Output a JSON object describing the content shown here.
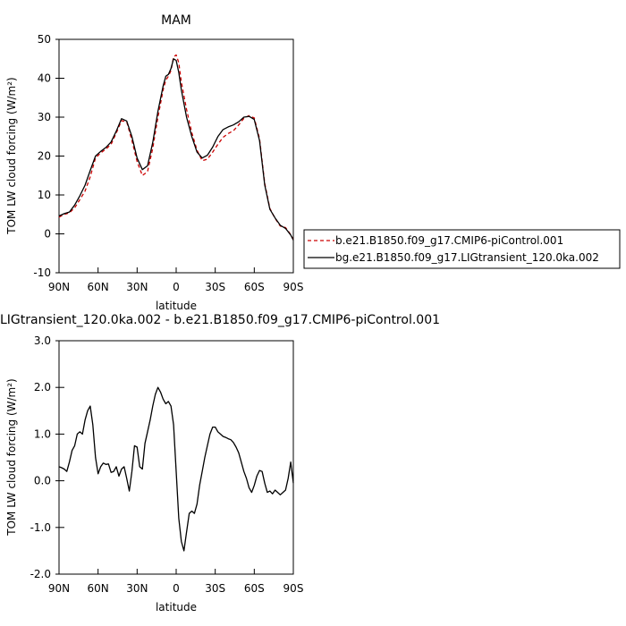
{
  "chart_data": [
    {
      "type": "line",
      "title": "MAM",
      "xlabel": "latitude",
      "ylabel": "TOM LW cloud forcing (W/m²)",
      "xlim": [
        90,
        -90
      ],
      "ylim": [
        -10,
        50
      ],
      "x_ticks": [
        90,
        60,
        30,
        0,
        -30,
        -60,
        -90
      ],
      "x_tick_labels": [
        "90N",
        "60N",
        "30N",
        "0",
        "30S",
        "60S",
        "90S"
      ],
      "y_ticks": [
        -10,
        0,
        10,
        20,
        30,
        40,
        50
      ],
      "y_tick_labels": [
        "-10",
        "0",
        "10",
        "20",
        "30",
        "40",
        "50"
      ],
      "legend": {
        "placement": "outside-right",
        "entries": [
          "b.e21.B1850.f09_g17.CMIP6-piControl.001",
          "bg.e21.B1850.f09_g17.LIGtransient_120.0ka.002"
        ]
      },
      "series": [
        {
          "name": "b.e21.B1850.f09_g17.CMIP6-piControl.001",
          "color": "#cc0000",
          "dash": "dashed",
          "x": [
            90,
            86,
            82,
            78,
            74,
            70,
            66,
            62,
            58,
            54,
            50,
            46,
            42,
            38,
            34,
            30,
            26,
            22,
            18,
            14,
            10,
            8,
            6,
            4,
            2,
            0,
            -2,
            -4,
            -8,
            -12,
            -16,
            -20,
            -24,
            -28,
            -32,
            -36,
            -40,
            -44,
            -48,
            -52,
            -56,
            -60,
            -64,
            -68,
            -72,
            -76,
            -80,
            -84,
            -88,
            -90
          ],
          "y": [
            4.3,
            5.0,
            5.4,
            6.7,
            8.8,
            11.0,
            14.7,
            19.5,
            20.8,
            21.8,
            23.0,
            25.9,
            29.1,
            28.8,
            24.0,
            18.6,
            15.0,
            16.0,
            22.0,
            30.0,
            37.0,
            39.5,
            40.5,
            42.0,
            45.5,
            46.0,
            44.0,
            39.0,
            32.0,
            26.0,
            21.5,
            18.8,
            19.2,
            21.0,
            23.0,
            24.8,
            25.8,
            26.5,
            28.0,
            29.7,
            30.4,
            29.8,
            24.5,
            13.0,
            6.5,
            4.0,
            2.0,
            1.6,
            -0.2,
            -1.5
          ]
        },
        {
          "name": "bg.e21.B1850.f09_g17.LIGtransient_120.0ka.002",
          "color": "#000000",
          "dash": "solid",
          "x": [
            90,
            86,
            82,
            78,
            74,
            70,
            66,
            62,
            58,
            54,
            50,
            46,
            42,
            38,
            34,
            30,
            26,
            22,
            18,
            14,
            10,
            8,
            6,
            4,
            2,
            0,
            -2,
            -4,
            -8,
            -12,
            -16,
            -20,
            -24,
            -28,
            -32,
            -36,
            -40,
            -44,
            -48,
            -52,
            -56,
            -60,
            -64,
            -68,
            -72,
            -76,
            -80,
            -84,
            -88,
            -90
          ],
          "y": [
            4.6,
            5.2,
            5.6,
            7.4,
            9.8,
            12.5,
            16.3,
            20.0,
            21.2,
            22.2,
            23.6,
            26.4,
            29.6,
            29.0,
            25.0,
            19.5,
            16.5,
            17.5,
            23.5,
            31.5,
            38.0,
            40.5,
            41.0,
            42.5,
            45.0,
            44.6,
            41.5,
            37.0,
            30.0,
            25.0,
            21.0,
            19.5,
            20.2,
            22.3,
            25.0,
            26.8,
            27.5,
            28.0,
            28.8,
            30.0,
            30.2,
            29.4,
            24.0,
            12.6,
            6.3,
            4.1,
            2.2,
            1.4,
            -0.3,
            -1.6
          ]
        }
      ]
    },
    {
      "type": "line",
      "title": "LIGtransient_120.0ka.002 - b.e21.B1850.f09_g17.CMIP6-piControl.001",
      "xlabel": "latitude",
      "ylabel": "TOM LW cloud forcing (W/m²)",
      "xlim": [
        90,
        -90
      ],
      "ylim": [
        -2.0,
        3.0
      ],
      "x_ticks": [
        90,
        60,
        30,
        0,
        -30,
        -60,
        -90
      ],
      "x_tick_labels": [
        "90N",
        "60N",
        "30N",
        "0",
        "30S",
        "60S",
        "90S"
      ],
      "y_ticks": [
        -2.0,
        -1.0,
        0.0,
        1.0,
        2.0,
        3.0
      ],
      "y_tick_labels": [
        "-2.0",
        "-1.0",
        "0.0",
        "1.0",
        "2.0",
        "3.0"
      ],
      "series": [
        {
          "color": "#000000",
          "dash": "solid",
          "x": [
            90,
            88,
            86,
            84,
            82,
            80,
            78,
            76,
            74,
            72,
            70,
            68,
            66,
            64,
            62,
            60,
            58,
            56,
            54,
            52,
            50,
            48,
            46,
            44,
            42,
            40,
            38,
            36,
            34,
            32,
            30,
            28,
            26,
            24,
            22,
            20,
            18,
            16,
            14,
            12,
            10,
            8,
            6,
            4,
            2,
            0,
            -2,
            -4,
            -6,
            -8,
            -10,
            -12,
            -14,
            -16,
            -18,
            -20,
            -22,
            -24,
            -26,
            -28,
            -30,
            -32,
            -34,
            -36,
            -38,
            -40,
            -42,
            -44,
            -46,
            -48,
            -50,
            -52,
            -54,
            -56,
            -58,
            -60,
            -62,
            -64,
            -66,
            -68,
            -70,
            -72,
            -74,
            -76,
            -78,
            -80,
            -82,
            -84,
            -86,
            -88,
            -90
          ],
          "y": [
            0.3,
            0.28,
            0.25,
            0.2,
            0.4,
            0.65,
            0.75,
            1.0,
            1.05,
            1.0,
            1.3,
            1.5,
            1.6,
            1.2,
            0.5,
            0.15,
            0.3,
            0.38,
            0.35,
            0.36,
            0.18,
            0.2,
            0.3,
            0.1,
            0.25,
            0.3,
            0.05,
            -0.22,
            0.2,
            0.75,
            0.72,
            0.3,
            0.25,
            0.8,
            1.05,
            1.3,
            1.6,
            1.85,
            2.0,
            1.9,
            1.75,
            1.65,
            1.7,
            1.6,
            1.2,
            0.2,
            -0.8,
            -1.3,
            -1.5,
            -1.1,
            -0.7,
            -0.65,
            -0.7,
            -0.5,
            -0.1,
            0.2,
            0.5,
            0.75,
            1.0,
            1.15,
            1.15,
            1.05,
            1.0,
            0.95,
            0.93,
            0.9,
            0.88,
            0.82,
            0.72,
            0.6,
            0.4,
            0.2,
            0.05,
            -0.15,
            -0.25,
            -0.1,
            0.1,
            0.22,
            0.2,
            -0.05,
            -0.25,
            -0.22,
            -0.28,
            -0.2,
            -0.25,
            -0.3,
            -0.25,
            -0.2,
            0.05,
            0.4,
            -0.05
          ]
        }
      ]
    }
  ]
}
